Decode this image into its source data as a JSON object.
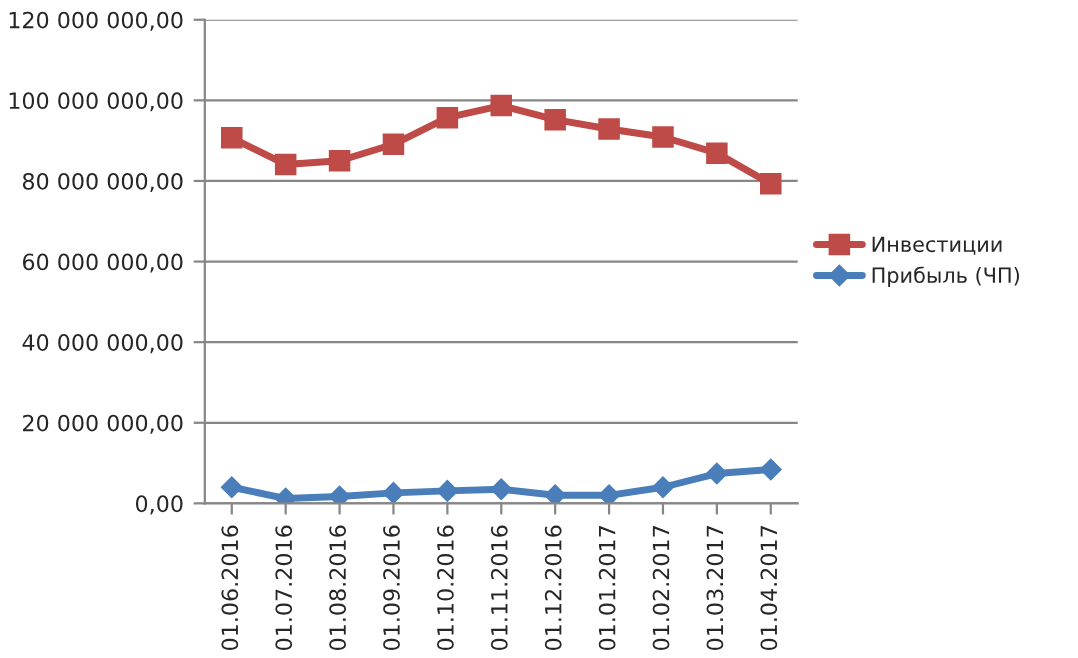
{
  "chart_data": {
    "type": "line",
    "categories": [
      "01.06.2016",
      "01.07.2016",
      "01.08.2016",
      "01.09.2016",
      "01.10.2016",
      "01.11.2016",
      "01.12.2016",
      "01.01.2017",
      "01.02.2017",
      "01.03.2017",
      "01.04.2017"
    ],
    "series": [
      {
        "name": "Инвестиции",
        "color": "#be4b48",
        "marker": "square",
        "values": [
          90700000,
          84100000,
          85000000,
          89100000,
          95700000,
          98700000,
          95200000,
          92900000,
          90900000,
          86900000,
          79300000
        ]
      },
      {
        "name": "Прибыль (ЧП)",
        "color": "#4a7ebb",
        "marker": "diamond",
        "values": [
          4000000,
          1200000,
          1700000,
          2600000,
          3100000,
          3500000,
          2000000,
          2000000,
          4000000,
          7400000,
          8400000
        ]
      }
    ],
    "ylim": [
      0,
      120000000
    ],
    "yticks": [
      {
        "value": 0,
        "label": "0,00"
      },
      {
        "value": 20000000,
        "label": "20 000 000,00"
      },
      {
        "value": 40000000,
        "label": "40 000 000,00"
      },
      {
        "value": 60000000,
        "label": "60 000 000,00"
      },
      {
        "value": 80000000,
        "label": "80 000 000,00"
      },
      {
        "value": 100000000,
        "label": "100 000 000,00"
      },
      {
        "value": 120000000,
        "label": "120 000 000,00"
      }
    ],
    "grid": "y",
    "legend": "right",
    "line_style": "solid"
  }
}
